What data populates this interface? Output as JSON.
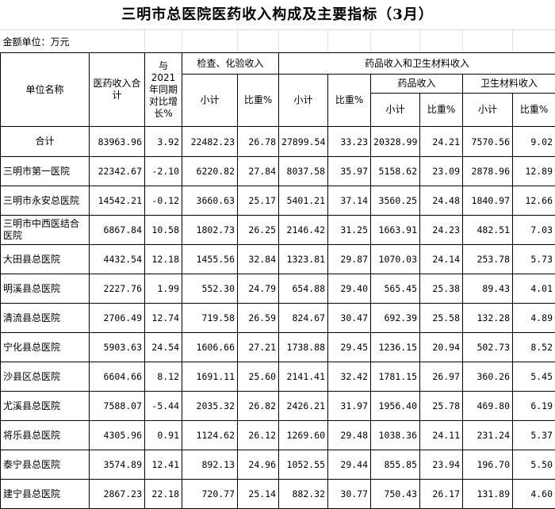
{
  "title": "三明市总医院医药收入构成及主要指标（3月）",
  "unit_label": "金额单位：万元",
  "headers": {
    "unit_name": "单位名称",
    "total_income": "医药收入合计",
    "yoy": "与2021年同期对比增长%",
    "exam_group": "检查、化验收入",
    "drug_material_group": "药品收入和卫生材料收入",
    "drug_group": "药品收入",
    "material_group": "卫生材料收入",
    "subtotal": "小计",
    "ratio": "比重%"
  },
  "rows": [
    {
      "name": "合计",
      "v": [
        "83963.96",
        "3.92",
        "22482.23",
        "26.78",
        "27899.54",
        "33.23",
        "20328.99",
        "24.21",
        "7570.56",
        "9.02"
      ]
    },
    {
      "name": "三明市第一医院",
      "v": [
        "22342.67",
        "-2.10",
        "6220.82",
        "27.84",
        "8037.58",
        "35.97",
        "5158.62",
        "23.09",
        "2878.96",
        "12.89"
      ]
    },
    {
      "name": "三明市永安总医院",
      "v": [
        "14542.21",
        "-0.12",
        "3660.63",
        "25.17",
        "5401.21",
        "37.14",
        "3560.25",
        "24.48",
        "1840.97",
        "12.66"
      ]
    },
    {
      "name": "三明市中西医结合医院",
      "v": [
        "6867.84",
        "10.58",
        "1802.73",
        "26.25",
        "2146.42",
        "31.25",
        "1663.91",
        "24.23",
        "482.51",
        "7.03"
      ]
    },
    {
      "name": "大田县总医院",
      "v": [
        "4432.54",
        "12.18",
        "1455.56",
        "32.84",
        "1323.81",
        "29.87",
        "1070.03",
        "24.14",
        "253.78",
        "5.73"
      ]
    },
    {
      "name": "明溪县总医院",
      "v": [
        "2227.76",
        "1.99",
        "552.30",
        "24.79",
        "654.88",
        "29.40",
        "565.45",
        "25.38",
        "89.43",
        "4.01"
      ]
    },
    {
      "name": "清流县总医院",
      "v": [
        "2706.49",
        "12.74",
        "719.58",
        "26.59",
        "824.67",
        "30.47",
        "692.39",
        "25.58",
        "132.28",
        "4.89"
      ]
    },
    {
      "name": "宁化县总医院",
      "v": [
        "5903.63",
        "24.54",
        "1606.66",
        "27.21",
        "1738.88",
        "29.45",
        "1236.15",
        "20.94",
        "502.73",
        "8.52"
      ]
    },
    {
      "name": "沙县区总医院",
      "v": [
        "6604.66",
        "8.12",
        "1691.11",
        "25.60",
        "2141.41",
        "32.42",
        "1781.15",
        "26.97",
        "360.26",
        "5.45"
      ]
    },
    {
      "name": "尤溪县总医院",
      "v": [
        "7588.07",
        "-5.44",
        "2035.32",
        "26.82",
        "2426.21",
        "31.97",
        "1956.40",
        "25.78",
        "469.80",
        "6.19"
      ]
    },
    {
      "name": "将乐县总医院",
      "v": [
        "4305.96",
        "0.91",
        "1124.62",
        "26.12",
        "1269.60",
        "29.48",
        "1038.36",
        "24.11",
        "231.24",
        "5.37"
      ]
    },
    {
      "name": "泰宁县总医院",
      "v": [
        "3574.89",
        "12.41",
        "892.13",
        "24.96",
        "1052.55",
        "29.44",
        "855.85",
        "23.94",
        "196.70",
        "5.50"
      ]
    },
    {
      "name": "建宁县总医院",
      "v": [
        "2867.23",
        "22.18",
        "720.77",
        "25.14",
        "882.32",
        "30.77",
        "750.43",
        "26.17",
        "131.89",
        "4.60"
      ]
    }
  ]
}
